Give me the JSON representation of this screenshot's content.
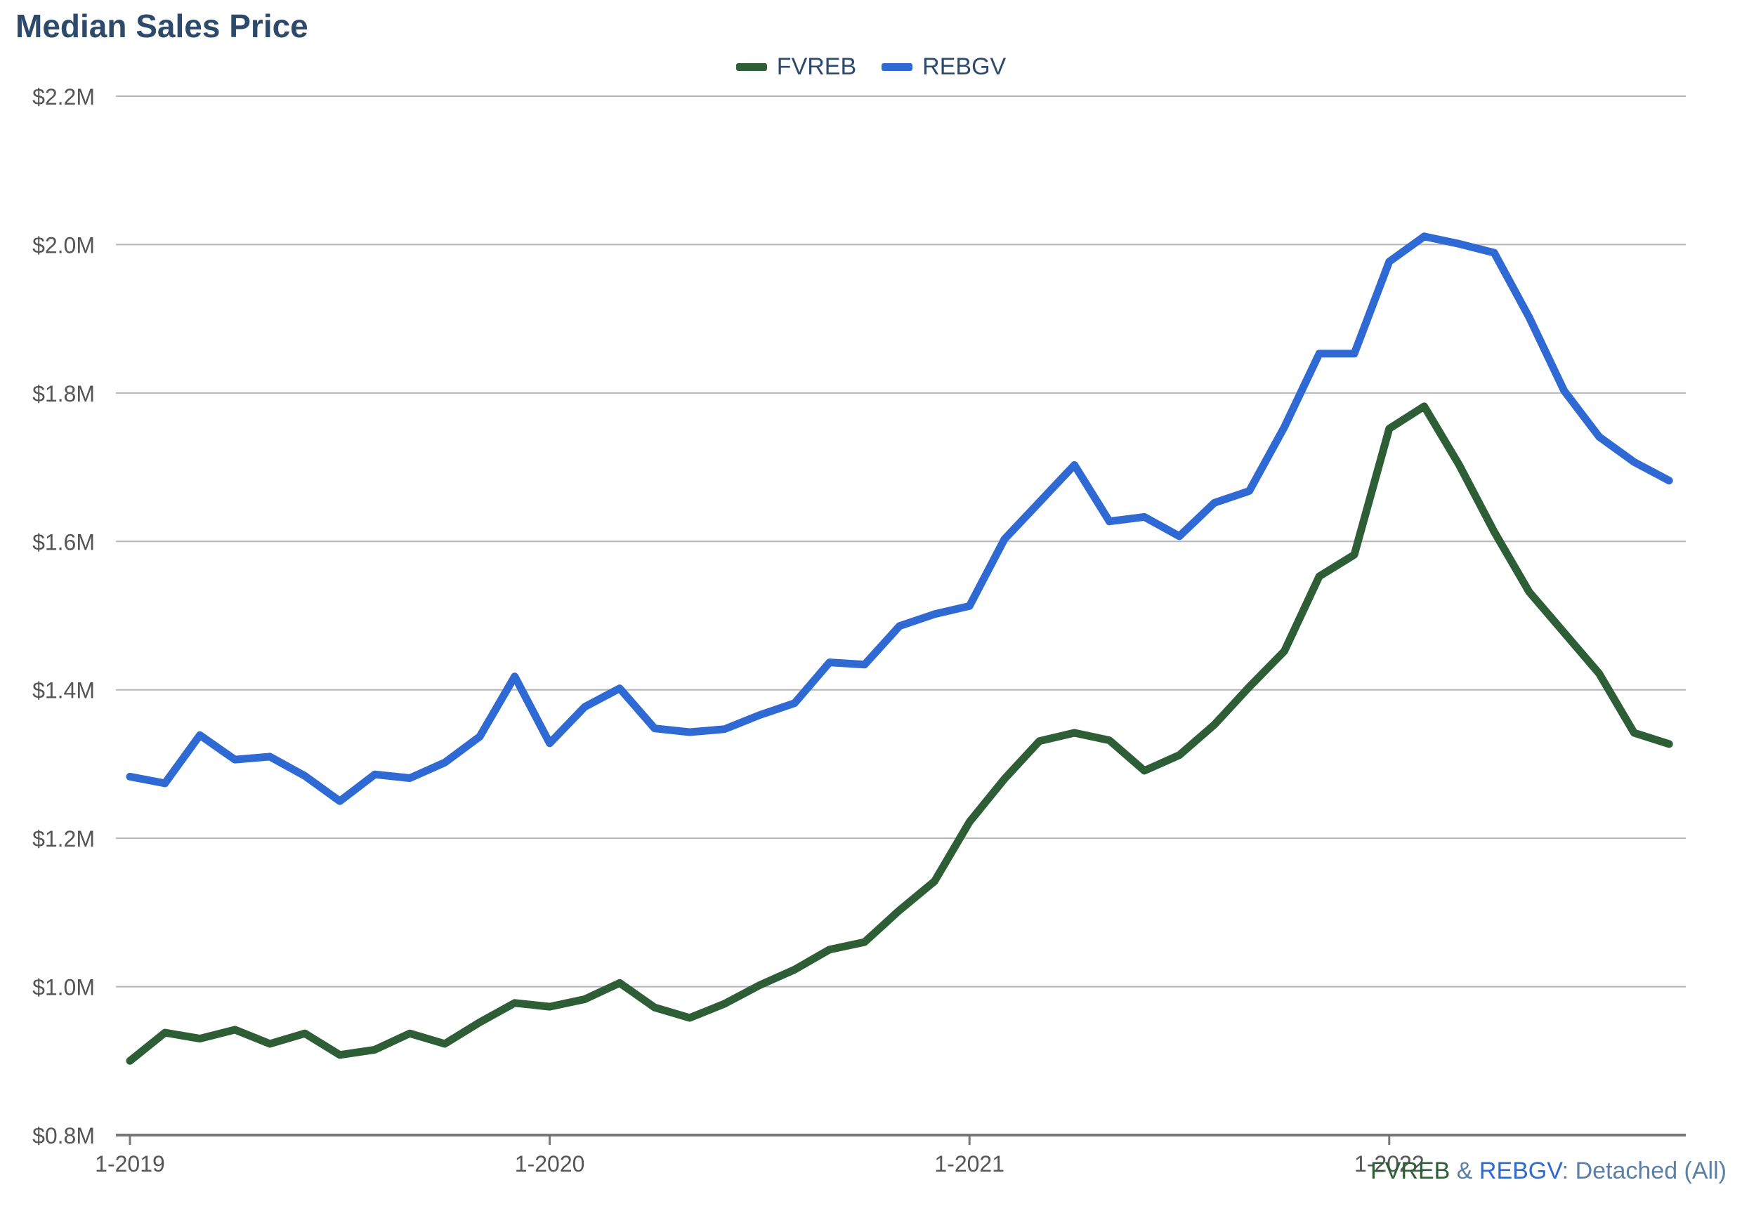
{
  "chart_data": {
    "type": "line",
    "title": "Median Sales Price",
    "caption": {
      "series_a": "FVREB",
      "amp": " & ",
      "series_b": "REBGV",
      "suffix": ": Detached (All)"
    },
    "colors": {
      "FVREB": "#2d5e35",
      "REBGV": "#2f6ad4",
      "title": "#2e4a6b",
      "grid": "#b5b5b5",
      "axis": "#777777"
    },
    "ylim": [
      800000,
      2200000
    ],
    "yticks": [
      {
        "value": 800000,
        "label": "$0.8M"
      },
      {
        "value": 1000000,
        "label": "$1.0M"
      },
      {
        "value": 1200000,
        "label": "$1.2M"
      },
      {
        "value": 1400000,
        "label": "$1.4M"
      },
      {
        "value": 1600000,
        "label": "$1.6M"
      },
      {
        "value": 1800000,
        "label": "$1.8M"
      },
      {
        "value": 2000000,
        "label": "$2.0M"
      },
      {
        "value": 2200000,
        "label": "$2.2M"
      }
    ],
    "xticks": [
      {
        "index": 0,
        "label": "1-2019"
      },
      {
        "index": 12,
        "label": "1-2020"
      },
      {
        "index": 24,
        "label": "1-2021"
      },
      {
        "index": 36,
        "label": "1-2022"
      }
    ],
    "x_start": "2019-01",
    "x_end_index": 45,
    "legend_position": "top-center",
    "grid": true,
    "series": [
      {
        "name": "FVREB",
        "values": [
          900000,
          938000,
          930000,
          942000,
          923000,
          937000,
          908000,
          915000,
          937000,
          923000,
          952000,
          978000,
          973000,
          983000,
          1005000,
          972000,
          958000,
          977000,
          1002000,
          1023000,
          1050000,
          1060000,
          1103000,
          1142000,
          1222000,
          1280000,
          1331000,
          1342000,
          1332000,
          1291000,
          1312000,
          1353000,
          1404000,
          1452000,
          1553000,
          1582000,
          1752000,
          1782000,
          1703000,
          1613000,
          1532000,
          1477000,
          1422000,
          1342000,
          1327000
        ]
      },
      {
        "name": "REBGV",
        "values": [
          1283000,
          1274000,
          1339000,
          1306000,
          1310000,
          1284000,
          1250000,
          1286000,
          1281000,
          1302000,
          1337000,
          1418000,
          1328000,
          1377000,
          1402000,
          1348000,
          1343000,
          1347000,
          1366000,
          1382000,
          1437000,
          1434000,
          1486000,
          1502000,
          1513000,
          1603000,
          1653000,
          1703000,
          1627000,
          1633000,
          1607000,
          1652000,
          1668000,
          1754000,
          1853000,
          1853000,
          1977000,
          2011000,
          2001000,
          1989000,
          1902000,
          1803000,
          1741000,
          1707000,
          1682000
        ]
      }
    ]
  }
}
